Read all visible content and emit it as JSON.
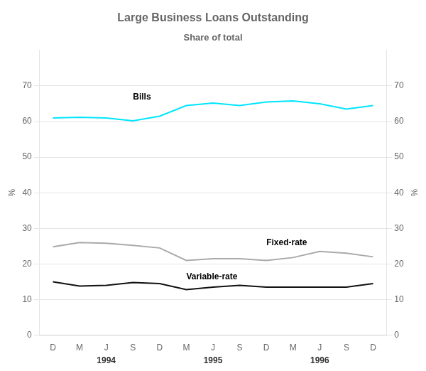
{
  "chart_data": {
    "type": "line",
    "title": "Large Business Loans Outstanding",
    "subtitle": "Share of total",
    "categories": [
      "D",
      "M",
      "J",
      "S",
      "D",
      "M",
      "J",
      "S",
      "D",
      "M",
      "J",
      "S",
      "D"
    ],
    "series": [
      {
        "name": "Bills",
        "color": "#00e5ff",
        "values": [
          61.0,
          61.2,
          61.0,
          60.2,
          61.5,
          64.5,
          65.2,
          64.5,
          65.5,
          65.8,
          65.0,
          63.5,
          64.5
        ]
      },
      {
        "name": "Fixed-rate",
        "color": "#aaaaaa",
        "values": [
          24.8,
          26.0,
          25.8,
          25.2,
          24.5,
          21.0,
          21.5,
          21.5,
          21.0,
          21.8,
          23.5,
          23.0,
          22.0
        ]
      },
      {
        "name": "Variable-rate",
        "color": "#111111",
        "values": [
          15.0,
          13.8,
          14.0,
          14.8,
          14.5,
          12.8,
          13.5,
          14.0,
          13.5,
          13.5,
          13.5,
          13.5,
          14.5
        ]
      }
    ],
    "ylabel": "%",
    "y2label": "%",
    "ylim": [
      0,
      80
    ],
    "yticks": [
      0,
      10,
      20,
      30,
      40,
      50,
      60,
      70
    ],
    "y2lim": [
      0,
      80
    ],
    "y2ticks": [
      0,
      10,
      20,
      30,
      40,
      50,
      60,
      70
    ],
    "grid": true,
    "annotations": [
      {
        "text": "1994",
        "x": 2
      },
      {
        "text": "1995",
        "x": 6
      },
      {
        "text": "1996",
        "x": 10
      }
    ]
  }
}
